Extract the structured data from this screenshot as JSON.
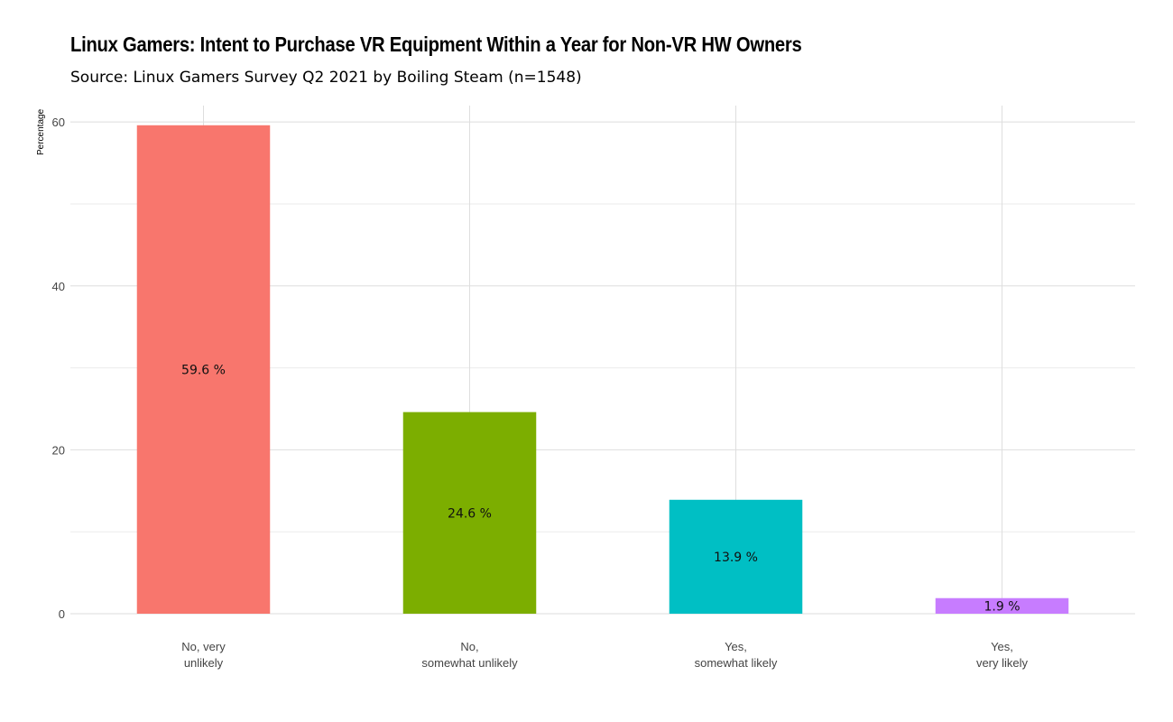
{
  "chart_data": {
    "type": "bar",
    "title": "Linux Gamers: Intent to Purchase VR Equipment Within a Year for Non-VR HW Owners",
    "subtitle": "Source: Linux Gamers Survey Q2 2021 by Boiling Steam (n=1548)",
    "xlabel": "",
    "ylabel": "Percentage",
    "ylim": [
      0,
      62
    ],
    "yticks": [
      0,
      20,
      40,
      60
    ],
    "grid": true,
    "legend": "none",
    "categories": [
      [
        "No, very",
        "unlikely"
      ],
      [
        "No,",
        "somewhat unlikely"
      ],
      [
        "Yes,",
        "somewhat likely"
      ],
      [
        "Yes,",
        "very likely"
      ]
    ],
    "values": [
      59.6,
      24.6,
      13.9,
      1.9
    ],
    "value_labels": [
      "59.6 %",
      "24.6 %",
      "13.9 %",
      "1.9 %"
    ],
    "colors": [
      "#F8766D",
      "#7CAE00",
      "#00BFC4",
      "#C77CFF"
    ]
  }
}
